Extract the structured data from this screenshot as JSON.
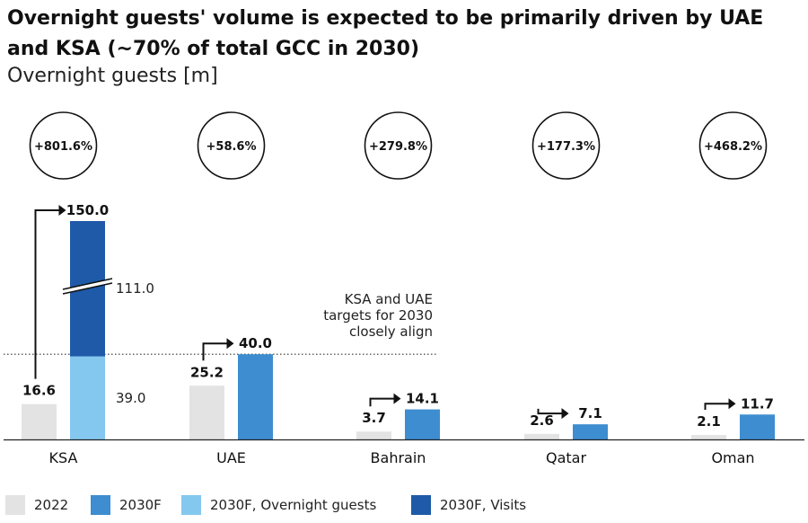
{
  "title": "Overnight guests' volume is expected to be primarily driven by UAE and KSA (~70% of total GCC in 2030)",
  "subtitle": "Overnight guests [m]",
  "annotation": [
    "KSA and UAE",
    "targets for 2030",
    "closely align"
  ],
  "colors": {
    "c2022": "#e3e3e3",
    "c2030": "#3d8dd0",
    "overnight": "#84c8ef",
    "visits": "#1e5aa8"
  },
  "legend": [
    {
      "label": "2022",
      "color": "#e3e3e3"
    },
    {
      "label": "2030F",
      "color": "#3d8dd0"
    },
    {
      "label": "2030F, Overnight guests",
      "color": "#84c8ef"
    },
    {
      "label": "2030F, Visits",
      "color": "#1e5aa8"
    }
  ],
  "chart_data": {
    "type": "bar",
    "title": "Overnight guests' volume is expected to be primarily driven by UAE and KSA (~70% of total GCC in 2030)",
    "ylabel": "Overnight guests [m]",
    "xlabel": "",
    "categories": [
      "KSA",
      "UAE",
      "Bahrain",
      "Qatar",
      "Oman"
    ],
    "growth_labels": [
      "+801.6%",
      "+58.6%",
      "+279.8%",
      "+177.3%",
      "+468.2%"
    ],
    "series": [
      {
        "name": "2022",
        "values": [
          16.6,
          25.2,
          3.7,
          2.6,
          2.1
        ]
      },
      {
        "name": "2030F",
        "values": [
          150.0,
          40.0,
          14.1,
          7.1,
          11.7
        ]
      }
    ],
    "stack_labels": [
      "150.0",
      "40.0",
      "14.1",
      "7.1",
      "11.7"
    ],
    "base_labels": [
      "16.6",
      "25.2",
      "3.7",
      "2.6",
      "2.1"
    ],
    "ksa_breakdown": {
      "overnight_guests": 39.0,
      "visits": 111.0,
      "overnight_label": "39.0",
      "visits_label": "111.0"
    },
    "axis_break": true,
    "reference_line_value": 40.0
  }
}
